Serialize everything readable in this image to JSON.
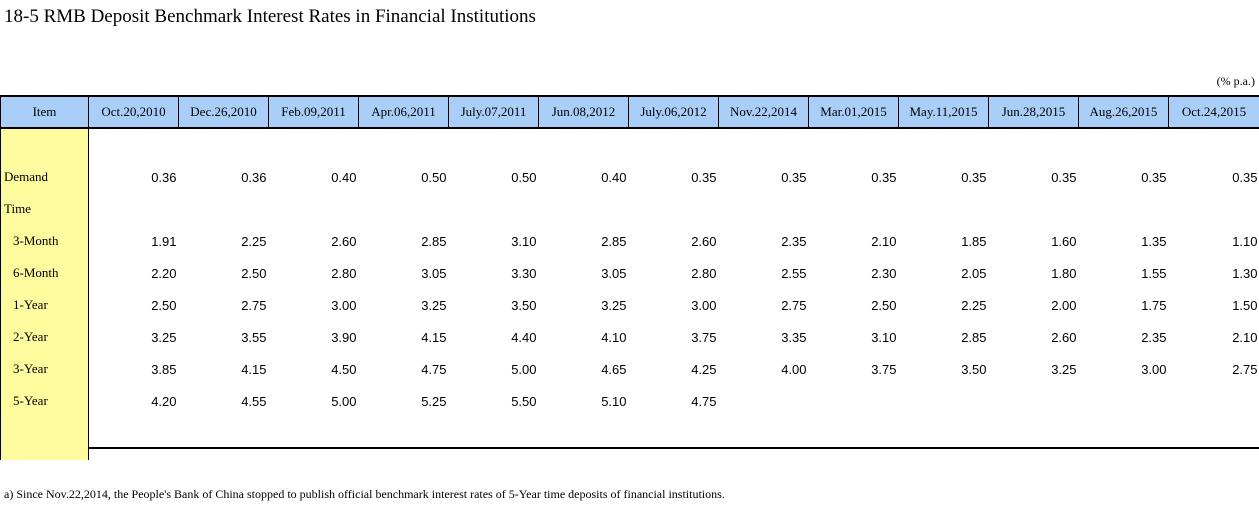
{
  "title": "18-5  RMB Deposit Benchmark Interest Rates in Financial Institutions",
  "unit": "(% p.a.)",
  "table": {
    "item_header": "Item",
    "dates": [
      "Oct.20,2010",
      "Dec.26,2010",
      "Feb.09,2011",
      "Apr.06,2011",
      "July.07,2011",
      "Jun.08,2012",
      "July.06,2012",
      "Nov.22,2014",
      "Mar.01,2015",
      "May.11,2015",
      "Jun.28,2015",
      "Aug.26,2015",
      "Oct.24,2015"
    ],
    "rows": [
      {
        "label": "Demand",
        "values": [
          "0.36",
          "0.36",
          "0.40",
          "0.50",
          "0.50",
          "0.40",
          "0.35",
          "0.35",
          "0.35",
          "0.35",
          "0.35",
          "0.35",
          "0.35"
        ]
      },
      {
        "label": "Time",
        "values": [
          "",
          "",
          "",
          "",
          "",
          "",
          "",
          "",
          "",
          "",
          "",
          "",
          ""
        ]
      },
      {
        "label": "3-Month",
        "values": [
          "1.91",
          "2.25",
          "2.60",
          "2.85",
          "3.10",
          "2.85",
          "2.60",
          "2.35",
          "2.10",
          "1.85",
          "1.60",
          "1.35",
          "1.10"
        ]
      },
      {
        "label": "6-Month",
        "values": [
          "2.20",
          "2.50",
          "2.80",
          "3.05",
          "3.30",
          "3.05",
          "2.80",
          "2.55",
          "2.30",
          "2.05",
          "1.80",
          "1.55",
          "1.30"
        ]
      },
      {
        "label": "1-Year",
        "values": [
          "2.50",
          "2.75",
          "3.00",
          "3.25",
          "3.50",
          "3.25",
          "3.00",
          "2.75",
          "2.50",
          "2.25",
          "2.00",
          "1.75",
          "1.50"
        ]
      },
      {
        "label": "2-Year",
        "values": [
          "3.25",
          "3.55",
          "3.90",
          "4.15",
          "4.40",
          "4.10",
          "3.75",
          "3.35",
          "3.10",
          "2.85",
          "2.60",
          "2.35",
          "2.10"
        ]
      },
      {
        "label": "3-Year",
        "values": [
          "3.85",
          "4.15",
          "4.50",
          "4.75",
          "5.00",
          "4.65",
          "4.25",
          "4.00",
          "3.75",
          "3.50",
          "3.25",
          "3.00",
          "2.75"
        ]
      },
      {
        "label": "5-Year",
        "values": [
          "4.20",
          "4.55",
          "5.00",
          "5.25",
          "5.50",
          "5.10",
          "4.75",
          "",
          "",
          "",
          "",
          "",
          ""
        ]
      }
    ]
  },
  "footnote": "a) Since Nov.22,2014, the People's Bank of China stopped to publish official benchmark interest rates of 5-Year time deposits of financial institutions.",
  "colors": {
    "header_bg": "#a9cff8",
    "item_bg": "#fdfb9d"
  }
}
